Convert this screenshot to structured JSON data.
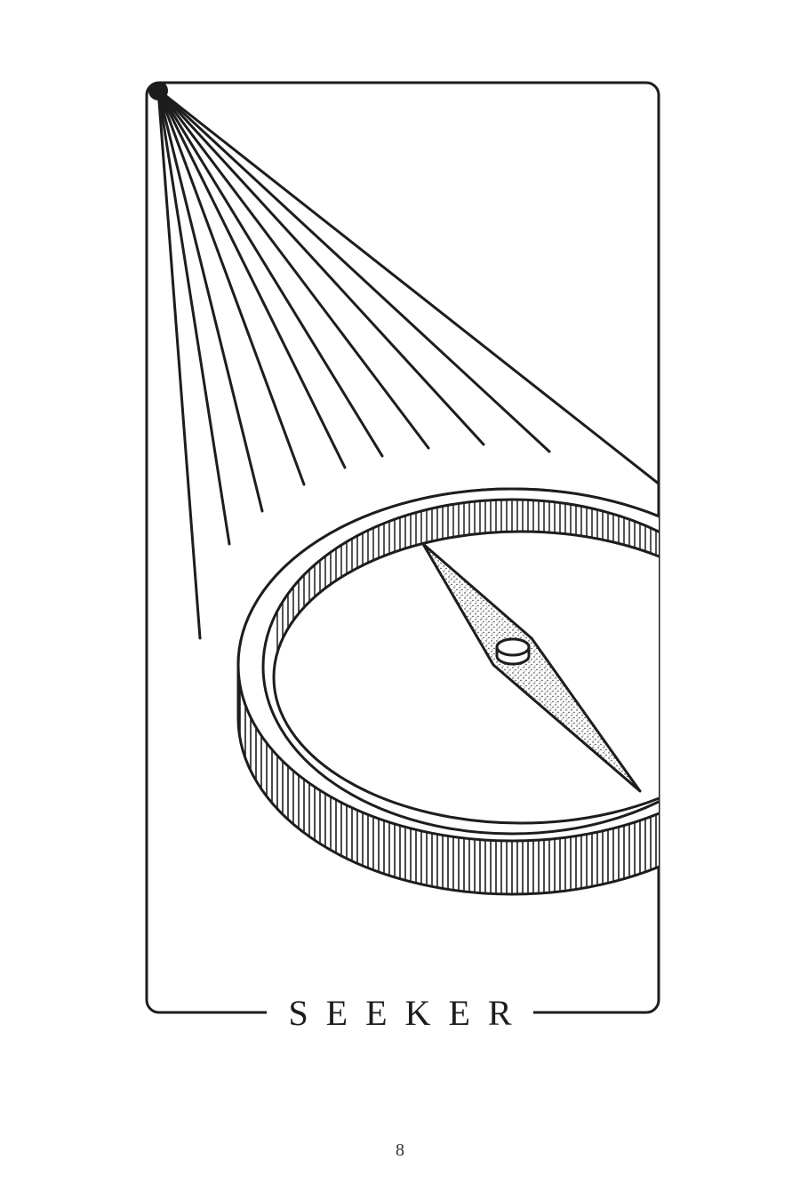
{
  "card": {
    "title": "SEEKER",
    "page_number": "8"
  },
  "illustration": {
    "subject": "compass-icon",
    "light_rays": "sun-rays-icon",
    "line_color": "#1d1d1d",
    "paper_color": "#ffffff"
  }
}
